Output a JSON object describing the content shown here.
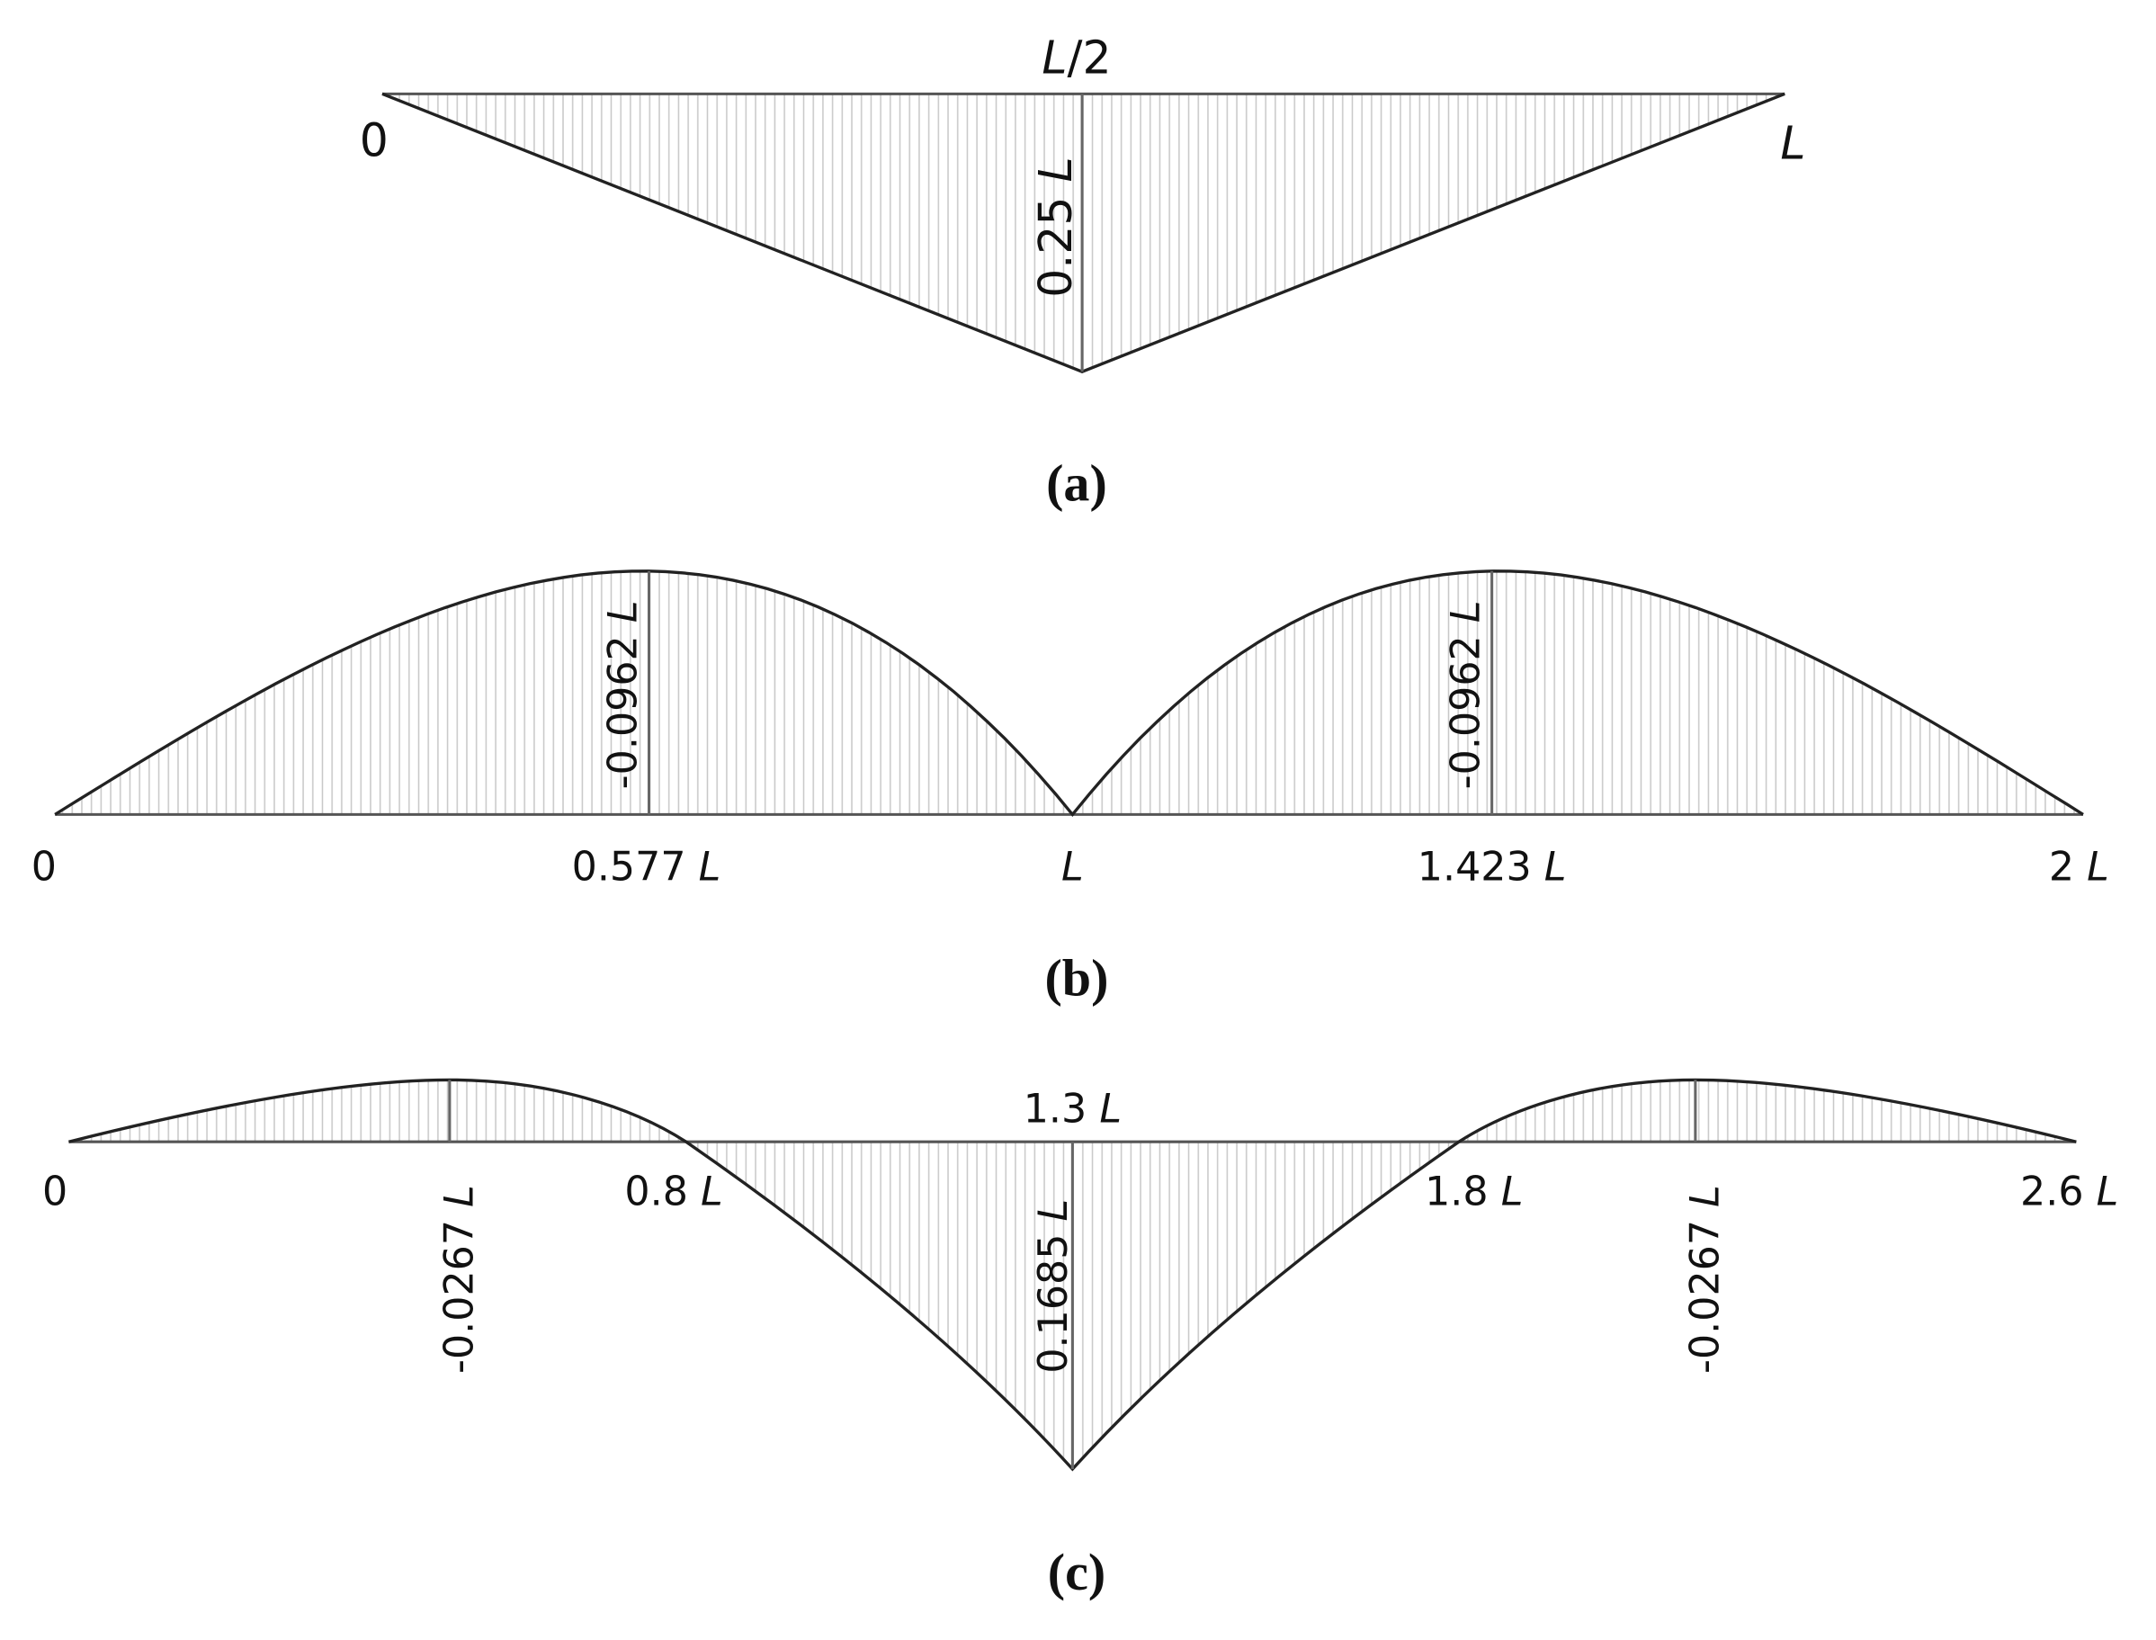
{
  "panels": [
    {
      "caption": "(a)",
      "labels": [
        "L/2",
        "0",
        "L",
        "0.25 L"
      ]
    },
    {
      "caption": "(b)",
      "labels": [
        "0",
        "0.577 L",
        "L",
        "1.423 L",
        "2 L",
        "-0.0962 L",
        "-0.0962 L"
      ]
    },
    {
      "caption": "(c)",
      "labels": [
        "1.3 L",
        "0",
        "0.8 L",
        "1.8 L",
        "2.6 L",
        "-0.0267 L",
        "0.1685 L",
        "-0.0267 L"
      ]
    }
  ]
}
